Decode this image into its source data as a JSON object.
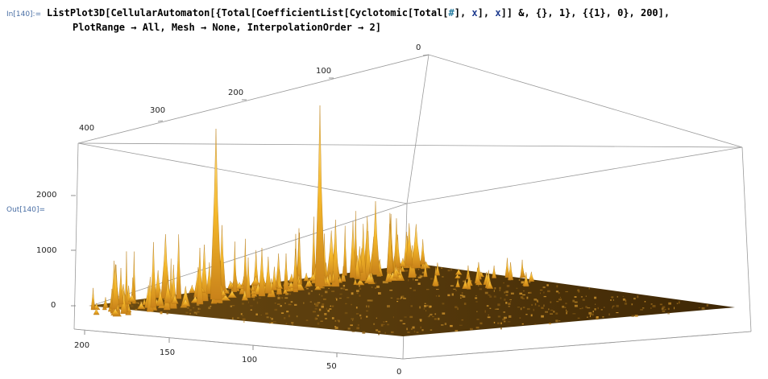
{
  "input_label": "In[140]:=",
  "output_label": "Out[140]=",
  "code": {
    "line1": {
      "pre": "ListPlot3D[CellularAutomaton[{Total[CoefficientList[Cyclotomic[Total[",
      "slot": "#",
      "mid1": "], ",
      "x1": "x",
      "mid2": "], ",
      "x2": "x",
      "post": "]] &, {}, 1}, {{1}, 0}, 200],"
    },
    "line2": {
      "pre": "PlotRange ",
      "arrow1": "→",
      "mid1": " All, Mesh ",
      "arrow2": "→",
      "mid2": " None, InterpolationOrder ",
      "arrow3": "→",
      "post": " 2]"
    }
  },
  "plot": {
    "top_axis_ticks": [
      "0",
      "100",
      "200",
      "300",
      "400"
    ],
    "vertical_axis_ticks": [
      "0",
      "1000",
      "2000"
    ],
    "bottom_axis_ticks": [
      "200",
      "150",
      "100",
      "50",
      "0"
    ],
    "surface_color": "#5a3a0a",
    "peak_color": "#f5b82a",
    "peak_light": "#ffe08a"
  }
}
